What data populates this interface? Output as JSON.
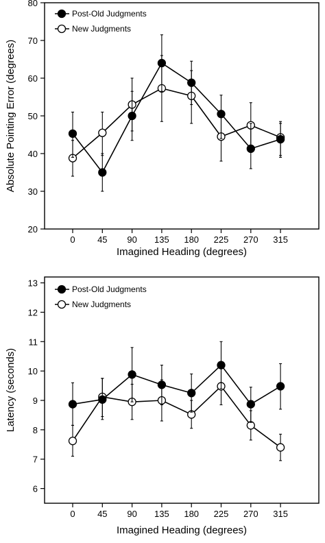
{
  "chart_data": [
    {
      "type": "line",
      "xlabel": "Imagined Heading (degrees)",
      "ylabel": "Absolute Pointing Error (degrees)",
      "categories": [
        "0",
        "45",
        "90",
        "135",
        "180",
        "225",
        "270",
        "315"
      ],
      "ylim": [
        20,
        80
      ],
      "yticks": [
        "20",
        "30",
        "40",
        "50",
        "60",
        "70",
        "80"
      ],
      "grid": false,
      "legend_position": "top-left",
      "series": [
        {
          "name": "Post-Old Judgments",
          "marker": "filled-circle",
          "color": "#000000",
          "values": [
            45.3,
            35.0,
            50.0,
            64.0,
            58.8,
            50.5,
            41.3,
            43.8
          ],
          "err_low": [
            39.0,
            30.0,
            43.5,
            56.5,
            53.0,
            44.0,
            36.0,
            39.5
          ],
          "err_high": [
            51.0,
            40.0,
            56.5,
            71.5,
            64.5,
            55.5,
            48.0,
            48.5
          ]
        },
        {
          "name": "New Judgments",
          "marker": "open-circle",
          "color": "#000000",
          "values": [
            38.8,
            45.5,
            53.0,
            57.3,
            55.3,
            44.5,
            47.5,
            44.3
          ],
          "err_low": [
            34.0,
            39.5,
            46.0,
            48.5,
            48.0,
            38.0,
            41.0,
            39.0
          ],
          "err_high": [
            43.5,
            51.0,
            60.0,
            66.0,
            62.0,
            51.0,
            53.5,
            48.0
          ]
        }
      ]
    },
    {
      "type": "line",
      "xlabel": "Imagined Heading (degrees)",
      "ylabel": "Latency (seconds)",
      "categories": [
        "0",
        "45",
        "90",
        "135",
        "180",
        "225",
        "270",
        "315"
      ],
      "ylim": [
        5.5,
        13.2
      ],
      "yticks": [
        "6",
        "7",
        "8",
        "9",
        "10",
        "11",
        "12",
        "13"
      ],
      "grid": false,
      "legend_position": "top-left",
      "series": [
        {
          "name": "Post-Old Judgments",
          "marker": "filled-circle",
          "color": "#000000",
          "values": [
            8.87,
            9.03,
            9.88,
            9.53,
            9.25,
            10.2,
            8.87,
            9.48
          ],
          "err_low": [
            8.15,
            8.35,
            8.95,
            8.85,
            8.6,
            9.4,
            8.25,
            8.7
          ],
          "err_high": [
            9.6,
            9.75,
            10.8,
            10.2,
            9.9,
            11.0,
            9.45,
            10.25
          ]
        },
        {
          "name": "New Judgments",
          "marker": "open-circle",
          "color": "#000000",
          "values": [
            7.62,
            9.12,
            8.95,
            9.0,
            8.52,
            9.48,
            8.15,
            7.4
          ],
          "err_low": [
            7.1,
            8.45,
            8.35,
            8.3,
            8.05,
            8.85,
            7.65,
            6.95
          ],
          "err_high": [
            8.15,
            9.75,
            9.55,
            9.7,
            9.0,
            10.1,
            8.65,
            7.85
          ]
        }
      ]
    }
  ]
}
